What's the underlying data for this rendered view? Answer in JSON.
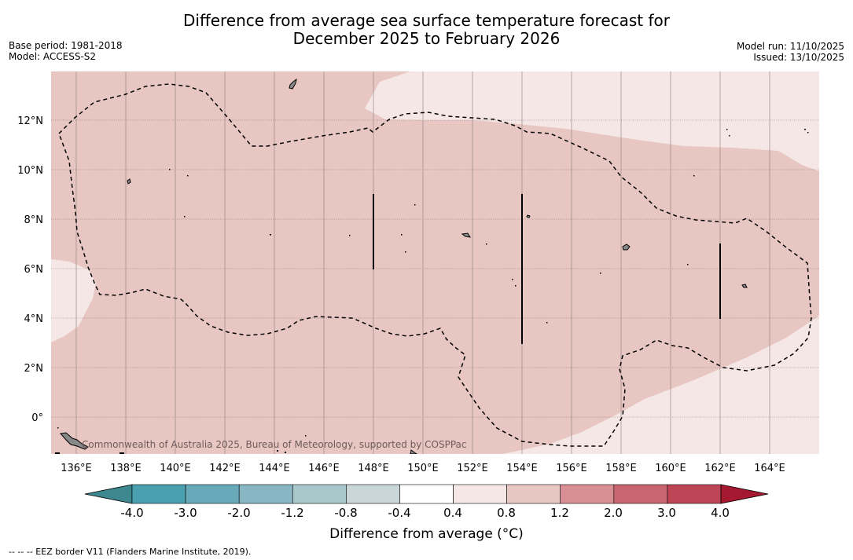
{
  "title": {
    "line1": "Difference from average sea surface temperature forecast for",
    "line2": "December 2025 to February 2026"
  },
  "meta_left": {
    "base_period": "Base period: 1981-2018",
    "model": "Model: ACCESS-S2"
  },
  "meta_right": {
    "model_run": "Model run: 11/10/2025",
    "issued": "Issued: 13/10/2025"
  },
  "map": {
    "lon_range": [
      135.0,
      166.0
    ],
    "lat_range": [
      -1.5,
      14.0
    ],
    "lon_ticks": [
      "136°E",
      "138°E",
      "140°E",
      "142°E",
      "144°E",
      "146°E",
      "148°E",
      "150°E",
      "152°E",
      "154°E",
      "156°E",
      "158°E",
      "160°E",
      "162°E",
      "164°E"
    ],
    "lat_ticks": [
      "0°",
      "2°N",
      "4°N",
      "6°N",
      "8°N",
      "10°N",
      "12°N"
    ],
    "watermark": "Commonwealth of Australia 2025, Bureau of Meteorology, supported by COSPPac",
    "background_fill": "#e8c6c1",
    "light_fill": "#f5e7e5"
  },
  "colorbar": {
    "tick_labels": [
      "-4.0",
      "-3.0",
      "-2.0",
      "-1.2",
      "-0.8",
      "-0.4",
      "0.4",
      "0.8",
      "1.2",
      "2.0",
      "3.0",
      "4.0"
    ],
    "colors": [
      "#4ba0b0",
      "#68aab9",
      "#88b6c2",
      "#a8c8cc",
      "#cad7d8",
      "#ffffff",
      "#f5e7e5",
      "#e8c6c1",
      "#d88e95",
      "#c86570",
      "#bd4556"
    ],
    "low_extend_color": "#3d878f",
    "high_extend_color": "#a5182f",
    "label": "Difference from average (°C)"
  },
  "footer": "--  --  -- EEZ border V11 (Flanders Marine Institute, 2019)."
}
